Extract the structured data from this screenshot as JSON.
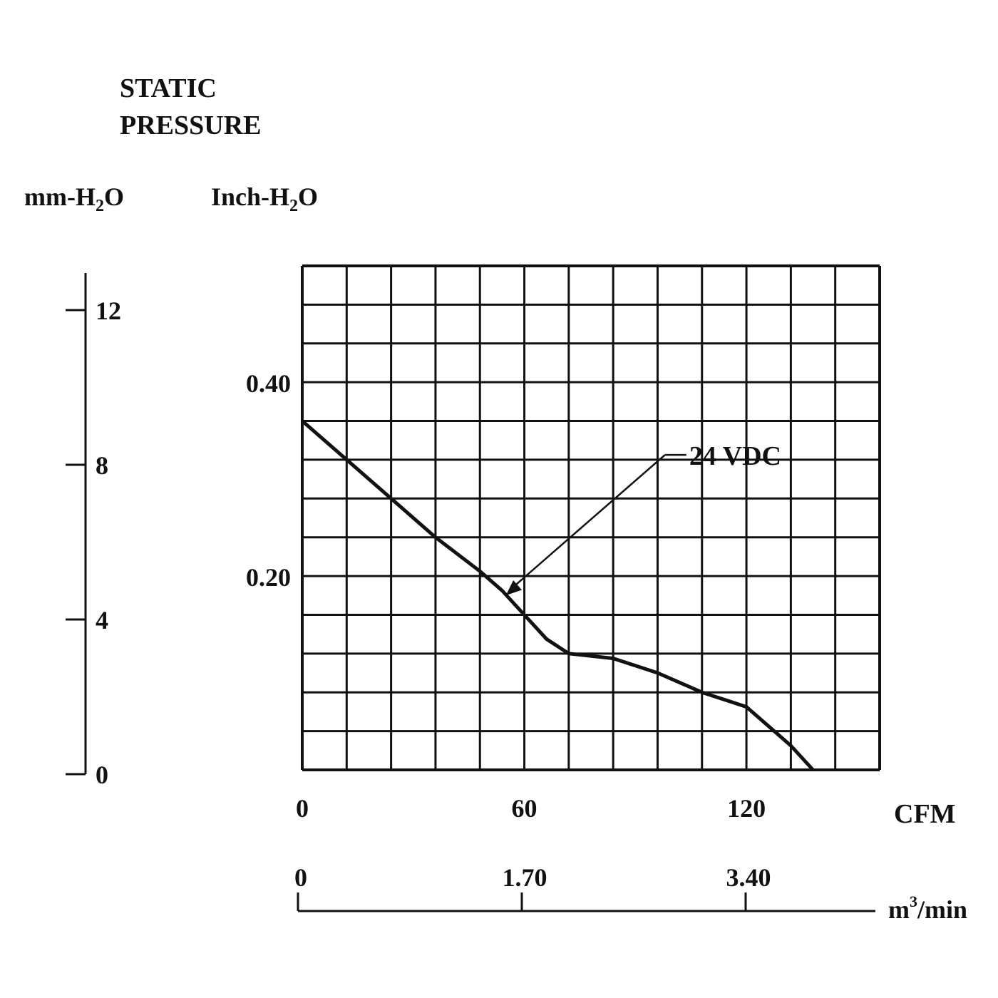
{
  "chart_data": {
    "type": "line",
    "title_line1": "STATIC",
    "title_line2": "PRESSURE",
    "y_unit_mm": "mm-H",
    "y_unit_inch": "Inch-H",
    "y_unit_sub": "2",
    "y_unit_tail": "O",
    "x_unit_cfm": "CFM",
    "x_unit_m3_base": "m",
    "x_unit_m3_sup": "3",
    "x_unit_m3_tail": "/min",
    "xlim_cfm": [
      0,
      156
    ],
    "ylim_inch": [
      0,
      0.52
    ],
    "ylim_mm": [
      0,
      12
    ],
    "grid": true,
    "grid_cols": 13,
    "grid_rows": 13,
    "inch_ticks": [
      {
        "value": 0.2,
        "label": "0.20"
      },
      {
        "value": 0.4,
        "label": "0.40"
      }
    ],
    "mm_ticks": [
      {
        "value": 0,
        "label": "0"
      },
      {
        "value": 4,
        "label": "4"
      },
      {
        "value": 8,
        "label": "8"
      },
      {
        "value": 12,
        "label": "12"
      }
    ],
    "cfm_ticks": [
      {
        "value": 0,
        "label": "0"
      },
      {
        "value": 60,
        "label": "60"
      },
      {
        "value": 120,
        "label": "120"
      }
    ],
    "m3_ticks": [
      {
        "value": 0,
        "label": "0"
      },
      {
        "value": 1.7,
        "label": "1.70"
      },
      {
        "value": 3.4,
        "label": "3.40"
      }
    ],
    "series": [
      {
        "name": "24 VDC",
        "x": [
          0,
          12,
          24,
          36,
          48,
          54,
          60,
          66,
          72,
          84,
          96,
          108,
          120,
          132,
          138
        ],
        "y": [
          0.36,
          0.32,
          0.28,
          0.24,
          0.205,
          0.185,
          0.16,
          0.135,
          0.12,
          0.115,
          0.1,
          0.08,
          0.065,
          0.025,
          0.0
        ]
      }
    ],
    "annotation": {
      "text": "24 VDC",
      "point": {
        "x": 55,
        "y": 0.18
      },
      "label_at": {
        "x": 98,
        "y": 0.325
      }
    }
  }
}
